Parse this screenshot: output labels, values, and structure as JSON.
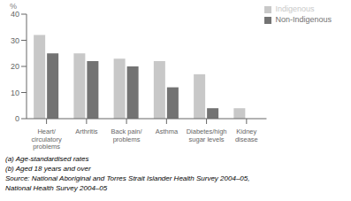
{
  "chart_data": {
    "type": "bar",
    "categories": [
      "Heart/\ncirculatory\nproblems",
      "Arthritis",
      "Back pain/\nproblems",
      "Asthma",
      "Diabetes/high\nsugar levels",
      "Kidney\ndisease"
    ],
    "series": [
      {
        "name": "Indigenous",
        "color": "#c8c8c8",
        "values": [
          32,
          25,
          23,
          22,
          17,
          4
        ]
      },
      {
        "name": "Non-Indigenous",
        "color": "#737373",
        "values": [
          25,
          22,
          20,
          12,
          4,
          0
        ]
      }
    ],
    "ylabel": "%",
    "ylim": [
      0,
      40
    ],
    "yticks": [
      0,
      10,
      20,
      30,
      40
    ],
    "grid": false,
    "legend": "upper right",
    "annotations": [
      "(a) Age-standardised rates",
      "(b) Aged 18 years and over",
      "Source: National Aboriginal and Torres Strait Islander Health Survey 2004–05,",
      "National Health Survey 2004–05"
    ]
  }
}
